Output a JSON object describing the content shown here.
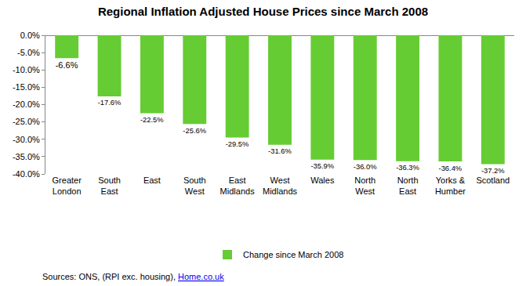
{
  "chart_data": {
    "type": "bar",
    "title": "Regional Inflation Adjusted House Prices since March 2008",
    "categories": [
      "Greater London",
      "South East",
      "East",
      "South West",
      "East Midlands",
      "West Midlands",
      "Wales",
      "North West",
      "North East",
      "Yorks & Humber",
      "Scotland"
    ],
    "series": [
      {
        "name": "Change since March 2008",
        "color": "#66cc33",
        "values": [
          -6.6,
          -17.6,
          -22.5,
          -25.6,
          -29.5,
          -31.6,
          -35.9,
          -36.0,
          -36.3,
          -36.4,
          -37.2
        ],
        "value_labels": [
          "-6.6%",
          "-17.6%",
          "-22.5%",
          "-25.6%",
          "-29.5%",
          "-31.6%",
          "-35.9%",
          "-36.0%",
          "-36.3%",
          "-36.4%",
          "-37.2%"
        ]
      }
    ],
    "ylim": [
      -40,
      0
    ],
    "yticks": [
      {
        "value": 0,
        "label": "0.0%"
      },
      {
        "value": -5,
        "label": "-5.0%"
      },
      {
        "value": -10,
        "label": "-10.0%"
      },
      {
        "value": -15,
        "label": "-15.0%"
      },
      {
        "value": -20,
        "label": "-20.0%"
      },
      {
        "value": -25,
        "label": "-25.0%"
      },
      {
        "value": -30,
        "label": "-30.0%"
      },
      {
        "value": -35,
        "label": "-35.0%"
      },
      {
        "value": -40,
        "label": "-40.0%"
      }
    ],
    "grid": false,
    "legend": "bottom",
    "data_labels": true,
    "source": "Sources: ONS, (RPI exc. housing),",
    "source_link": "Home.co.uk"
  }
}
